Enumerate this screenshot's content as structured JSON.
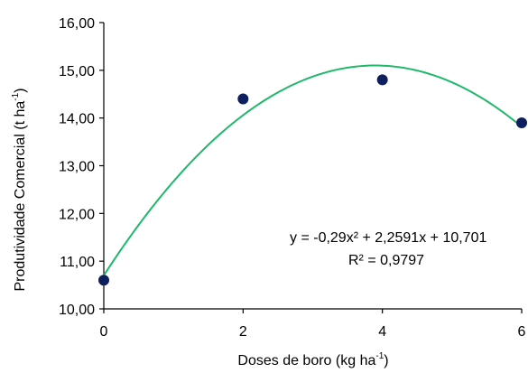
{
  "chart_data": {
    "type": "scatter",
    "xlabel": "Doses de boro (kg ha",
    "xlabel_sup": "-1",
    "xlabel_end": ")",
    "ylabel": "Produtividade Comercial (t ha",
    "ylabel_sup": "-1",
    "ylabel_end": ")",
    "x_ticks": [
      "0",
      "2",
      "4",
      "6"
    ],
    "y_ticks": [
      "10,00",
      "11,00",
      "12,00",
      "13,00",
      "14,00",
      "15,00",
      "16,00"
    ],
    "xlim": [
      0,
      6
    ],
    "ylim": [
      10,
      16
    ],
    "points": [
      {
        "x": 0,
        "y": 10.6
      },
      {
        "x": 2,
        "y": 14.4
      },
      {
        "x": 4,
        "y": 14.8
      },
      {
        "x": 6,
        "y": 13.9
      }
    ],
    "trendline": {
      "type": "quadratic",
      "a": -0.29,
      "b": 2.2591,
      "c": 10.701
    },
    "equation": "y = -0,29x² + 2,2591x + 10,701",
    "r_squared": "R² = 0,9797",
    "grid": false,
    "colors": {
      "points": "#0d1f5c",
      "trendline": "#1fb86b",
      "axis": "#000000"
    }
  }
}
